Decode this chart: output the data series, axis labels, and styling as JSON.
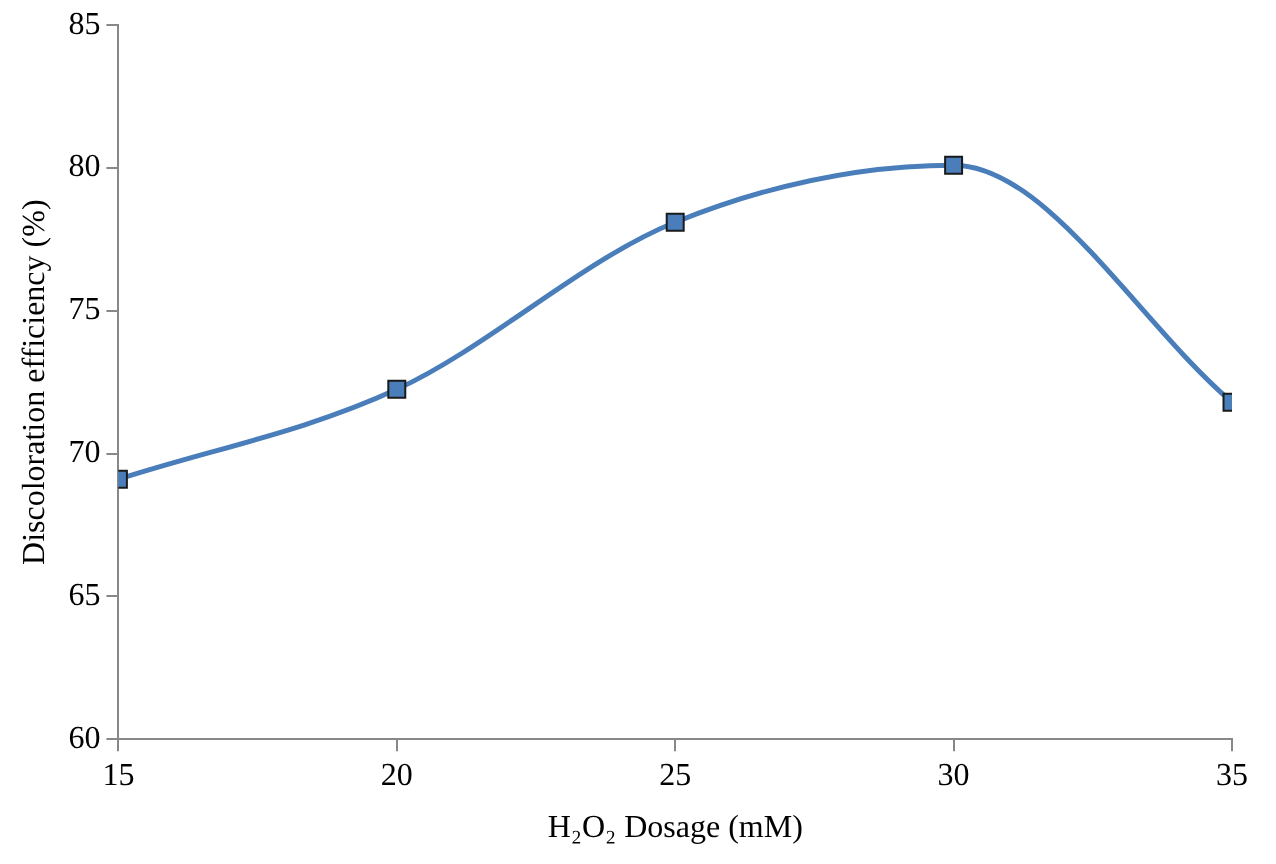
{
  "chart_data": {
    "type": "line",
    "xlabel": "H₂O₂ Dosage (mM)",
    "ylabel": "Discoloration efficiency (%)",
    "x": [
      15,
      20,
      25,
      30,
      35
    ],
    "series": [
      {
        "color": "#4a7ebb",
        "values": [
          69.1,
          72.25,
          78.1,
          80.1,
          71.8
        ]
      }
    ],
    "xlim": [
      15,
      35
    ],
    "xticks": [
      15,
      20,
      25,
      30,
      35
    ],
    "ylim": [
      60,
      85
    ],
    "yticks": [
      60,
      65,
      70,
      75,
      80,
      85
    ],
    "grid": false,
    "legend": false,
    "marker": "square",
    "line_style": "solid"
  }
}
